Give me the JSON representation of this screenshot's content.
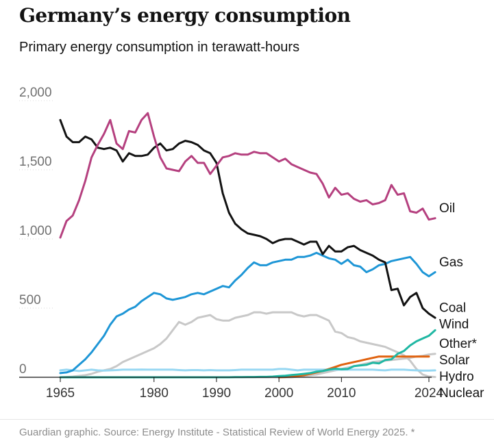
{
  "title": "Germany’s energy consumption",
  "subtitle": "Primary energy consumption in terawatt-hours",
  "source": "Guardian graphic. Source: Energy Institute - Statistical Review of World Energy 2025. *",
  "chart_data": {
    "type": "line",
    "title": "Germany’s energy consumption",
    "subtitle": "Primary energy consumption in terawatt-hours",
    "xlabel": "",
    "ylabel": "",
    "xlim": [
      1965,
      2024
    ],
    "ylim": [
      0,
      2000
    ],
    "x_ticks": [
      1965,
      1980,
      1990,
      2000,
      2010,
      2024
    ],
    "y_ticks": [
      0,
      500,
      1000,
      1500,
      2000
    ],
    "x_tick_labels": [
      "1965",
      "1980",
      "1990",
      "2000",
      "2010",
      "2024"
    ],
    "y_tick_labels": [
      "0",
      "500",
      "1,000",
      "1,500",
      "2,000"
    ],
    "grid": false,
    "legend": "direct labels at line ends",
    "series": [
      {
        "name": "Oil",
        "color": "#b5407f",
        "start": 1965,
        "values": [
          1010,
          1130,
          1170,
          1280,
          1420,
          1590,
          1680,
          1760,
          1860,
          1690,
          1650,
          1780,
          1770,
          1860,
          1910,
          1740,
          1590,
          1510,
          1500,
          1490,
          1560,
          1600,
          1550,
          1550,
          1470,
          1530,
          1590,
          1600,
          1620,
          1610,
          1610,
          1630,
          1620,
          1620,
          1590,
          1560,
          1580,
          1540,
          1520,
          1500,
          1480,
          1470,
          1400,
          1300,
          1370,
          1320,
          1330,
          1290,
          1270,
          1280,
          1250,
          1260,
          1280,
          1390,
          1320,
          1330,
          1200,
          1190,
          1220,
          1140,
          1150
        ]
      },
      {
        "name": "Gas",
        "color": "#1e96d6",
        "start": 1965,
        "values": [
          30,
          35,
          50,
          90,
          130,
          180,
          240,
          300,
          380,
          440,
          460,
          490,
          510,
          550,
          580,
          610,
          600,
          570,
          560,
          570,
          580,
          600,
          610,
          600,
          620,
          640,
          660,
          650,
          700,
          740,
          790,
          830,
          810,
          810,
          830,
          840,
          850,
          850,
          870,
          870,
          880,
          900,
          880,
          860,
          850,
          820,
          850,
          810,
          800,
          760,
          780,
          810,
          820,
          840,
          850,
          860,
          870,
          820,
          760,
          730,
          760
        ]
      },
      {
        "name": "Coal",
        "color": "#121212",
        "start": 1965,
        "values": [
          1860,
          1740,
          1700,
          1700,
          1740,
          1720,
          1660,
          1650,
          1660,
          1640,
          1560,
          1620,
          1600,
          1600,
          1610,
          1660,
          1690,
          1640,
          1650,
          1690,
          1710,
          1700,
          1680,
          1640,
          1620,
          1550,
          1330,
          1190,
          1110,
          1070,
          1040,
          1030,
          1020,
          1000,
          970,
          990,
          1000,
          1000,
          980,
          960,
          980,
          980,
          890,
          950,
          910,
          910,
          940,
          950,
          920,
          900,
          880,
          850,
          830,
          630,
          640,
          520,
          580,
          610,
          500,
          460,
          430
        ]
      },
      {
        "name": "Wind",
        "color": "#1fb7a3",
        "start": 1965,
        "values": [
          0,
          0,
          0,
          0,
          0,
          0,
          0,
          0,
          0,
          0,
          0,
          0,
          0,
          0,
          0,
          0,
          0,
          0,
          0,
          0,
          0,
          0,
          0,
          0,
          0,
          0,
          0,
          0,
          1,
          1,
          2,
          2,
          3,
          3,
          5,
          9,
          11,
          16,
          20,
          25,
          30,
          40,
          45,
          55,
          62,
          58,
          60,
          80,
          85,
          90,
          105,
          100,
          125,
          130,
          170,
          190,
          230,
          260,
          280,
          300,
          340
        ]
      },
      {
        "name": "Other*",
        "color": "#c8c8c8",
        "start": 1965,
        "values": [
          0,
          0,
          0,
          0,
          0,
          0,
          0,
          0,
          0,
          0,
          0,
          0,
          0,
          0,
          0,
          0,
          0,
          0,
          0,
          0,
          0,
          0,
          0,
          0,
          0,
          0,
          0,
          0,
          0,
          0,
          0,
          0,
          0,
          0,
          0,
          0,
          0,
          0,
          5,
          10,
          15,
          20,
          30,
          40,
          50,
          60,
          70,
          80,
          90,
          100,
          110,
          115,
          120,
          125,
          130,
          135,
          140,
          150,
          155,
          165,
          170
        ]
      },
      {
        "name": "Solar",
        "color": "#e0620f",
        "start": 2000,
        "values": [
          0,
          2,
          5,
          10,
          15,
          25,
          35,
          45,
          60,
          75,
          90,
          100,
          110,
          120,
          130,
          140,
          150,
          150,
          150,
          150,
          150,
          150,
          150,
          150,
          150
        ]
      },
      {
        "name": "Hydro",
        "color": "#96d7f2",
        "start": 1965,
        "values": [
          50,
          55,
          50,
          45,
          50,
          55,
          50,
          48,
          50,
          52,
          55,
          55,
          55,
          56,
          55,
          55,
          55,
          55,
          55,
          52,
          50,
          52,
          52,
          50,
          52,
          50,
          50,
          50,
          52,
          55,
          55,
          55,
          55,
          55,
          55,
          60,
          60,
          55,
          50,
          55,
          55,
          55,
          55,
          55,
          55,
          55,
          55,
          55,
          55,
          55,
          55,
          52,
          50,
          55,
          55,
          55,
          52,
          50,
          48,
          48,
          50
        ]
      },
      {
        "name": "Nuclear",
        "color": "#c8c8c8",
        "start": 1965,
        "values": [
          0,
          2,
          5,
          10,
          15,
          25,
          40,
          50,
          60,
          80,
          110,
          130,
          150,
          170,
          190,
          210,
          240,
          280,
          340,
          400,
          380,
          400,
          430,
          440,
          450,
          420,
          410,
          410,
          430,
          440,
          450,
          470,
          470,
          460,
          470,
          470,
          470,
          470,
          450,
          440,
          450,
          450,
          430,
          410,
          330,
          320,
          290,
          280,
          260,
          250,
          240,
          230,
          220,
          200,
          180,
          160,
          120,
          60,
          20,
          5,
          2
        ]
      }
    ]
  }
}
